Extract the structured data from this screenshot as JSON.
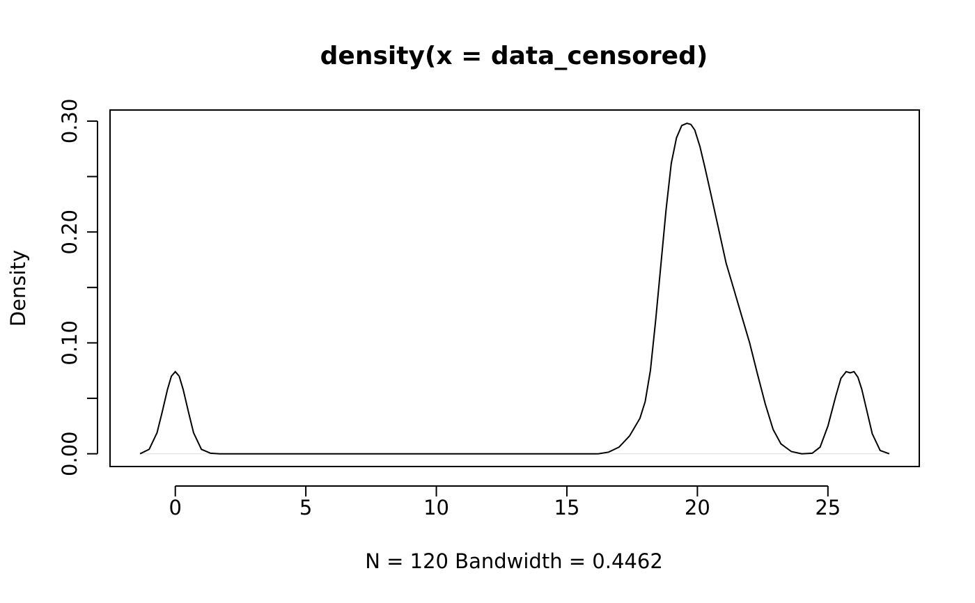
{
  "chart_data": {
    "type": "line",
    "title": "density(x = data_censored)",
    "xlabel": "N = 120   Bandwidth = 0.4462",
    "ylabel": "Density",
    "xlim": [
      -2.5,
      28.5
    ],
    "ylim": [
      -0.0115,
      0.31
    ],
    "x_ticks": [
      0,
      5,
      10,
      15,
      20,
      25
    ],
    "x_tick_labels": [
      "0",
      "5",
      "10",
      "15",
      "20",
      "25"
    ],
    "y_ticks": [
      0.0,
      0.05,
      0.1,
      0.15,
      0.2,
      0.25,
      0.3
    ],
    "y_tick_labels": [
      "0.00",
      "",
      "0.10",
      "",
      "0.20",
      "",
      "0.30"
    ],
    "grid": false,
    "zero_baseline": true,
    "series": [
      {
        "color": "#000000",
        "x": [
          -1.35,
          -1.0,
          -0.7,
          -0.5,
          -0.3,
          -0.15,
          0.0,
          0.15,
          0.3,
          0.5,
          0.7,
          1.0,
          1.35,
          1.7,
          5.0,
          10.0,
          15.0,
          16.2,
          16.6,
          17.0,
          17.4,
          17.8,
          18.0,
          18.2,
          18.4,
          18.6,
          18.8,
          19.0,
          19.2,
          19.4,
          19.6,
          19.75,
          19.9,
          20.1,
          20.3,
          20.5,
          20.8,
          21.1,
          21.4,
          21.7,
          22.0,
          22.3,
          22.6,
          22.9,
          23.2,
          23.6,
          24.0,
          24.4,
          24.7,
          25.0,
          25.3,
          25.5,
          25.7,
          25.85,
          26.0,
          26.15,
          26.3,
          26.5,
          26.7,
          27.0,
          27.35
        ],
        "y": [
          0.0,
          0.004,
          0.019,
          0.038,
          0.058,
          0.07,
          0.074,
          0.07,
          0.058,
          0.038,
          0.019,
          0.004,
          0.0005,
          0.0,
          0.0,
          0.0,
          0.0,
          0.0,
          0.0015,
          0.006,
          0.016,
          0.032,
          0.047,
          0.075,
          0.12,
          0.17,
          0.22,
          0.262,
          0.285,
          0.296,
          0.298,
          0.297,
          0.292,
          0.277,
          0.257,
          0.236,
          0.204,
          0.172,
          0.148,
          0.124,
          0.1,
          0.072,
          0.045,
          0.022,
          0.009,
          0.002,
          0.0,
          0.0005,
          0.006,
          0.025,
          0.052,
          0.068,
          0.074,
          0.073,
          0.074,
          0.069,
          0.058,
          0.038,
          0.018,
          0.003,
          0.0
        ]
      }
    ]
  }
}
